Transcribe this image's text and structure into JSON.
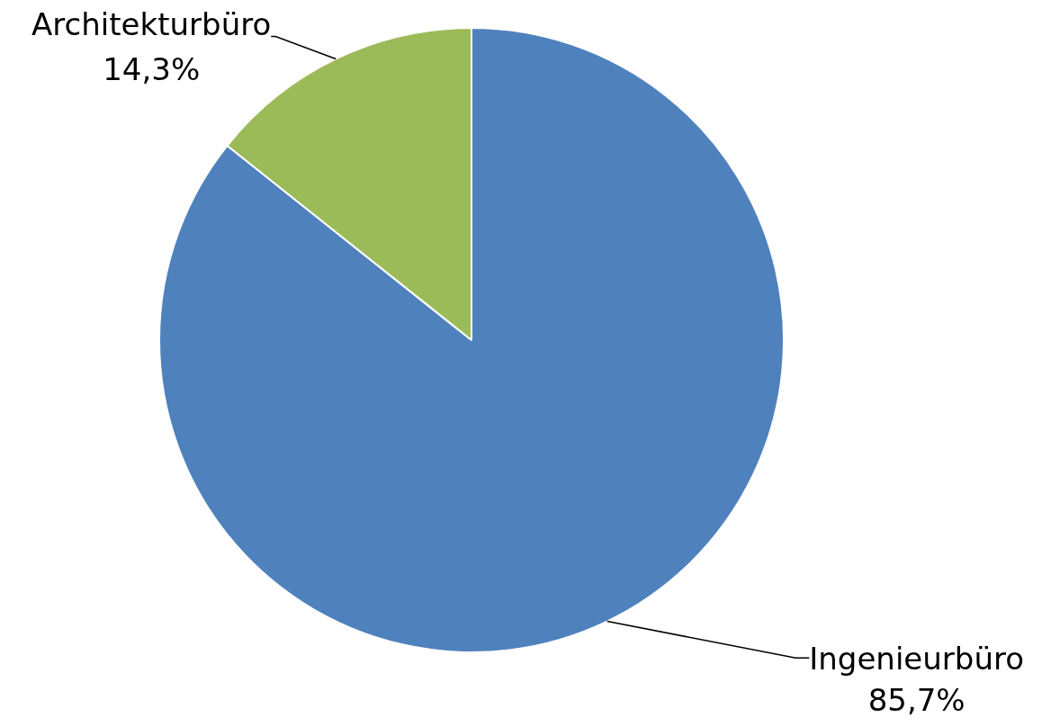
{
  "chart_data": {
    "type": "pie",
    "categories": [
      "Ingenieurbüro",
      "Architekturbüro"
    ],
    "values": [
      85.7,
      14.3
    ],
    "colors": [
      "#4f81bd",
      "#9bbb59"
    ],
    "value_labels": [
      "85,7%",
      "14,3%"
    ],
    "legend": false
  }
}
